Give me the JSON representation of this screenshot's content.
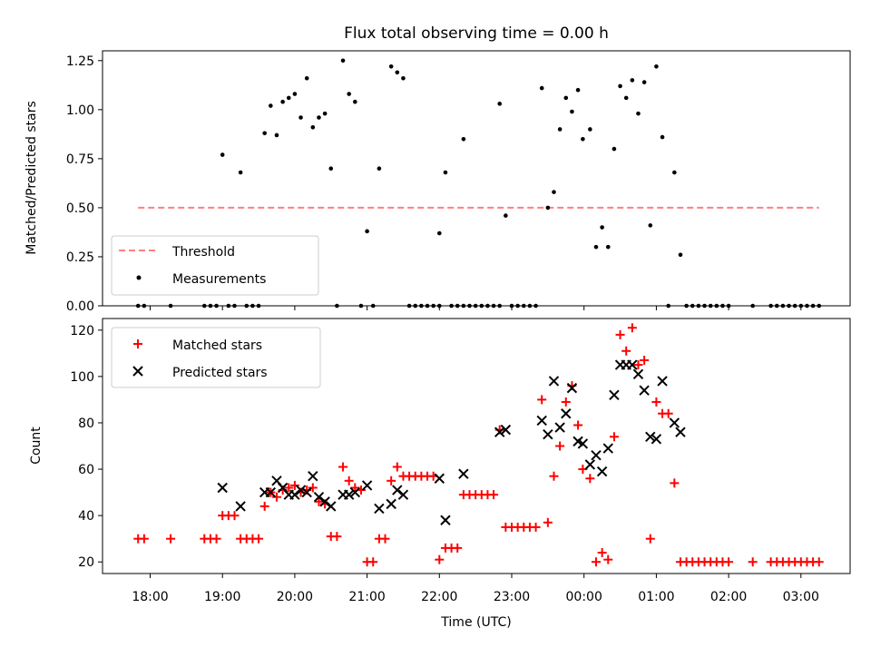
{
  "chart_data": [
    {
      "type": "scatter",
      "title": "Flux total observing time = 0.00 h",
      "xlabel": "",
      "ylabel": "Matched/Predicted stars",
      "ylim": [
        0,
        1.3
      ],
      "yticks": [
        "0.00",
        "0.25",
        "0.50",
        "0.75",
        "1.00",
        "1.25"
      ],
      "legend_position": "lower-left",
      "threshold": {
        "name": "Threshold",
        "value": 0.5,
        "x_range": [
          "17:50",
          "03:15"
        ],
        "color": "#ff7f7f",
        "style": "dashed"
      },
      "series": [
        {
          "name": "Measurements",
          "color": "#000000",
          "marker": "dot",
          "points": [
            [
              "17:50",
              0
            ],
            [
              "17:55",
              0
            ],
            [
              "18:17",
              0
            ],
            [
              "18:45",
              0
            ],
            [
              "18:50",
              0
            ],
            [
              "18:55",
              0
            ],
            [
              "19:05",
              0
            ],
            [
              "19:10",
              0
            ],
            [
              "19:20",
              0
            ],
            [
              "19:25",
              0
            ],
            [
              "19:30",
              0
            ],
            [
              "20:35",
              0
            ],
            [
              "20:55",
              0
            ],
            [
              "21:05",
              0
            ],
            [
              "21:35",
              0
            ],
            [
              "21:40",
              0
            ],
            [
              "21:45",
              0
            ],
            [
              "21:50",
              0
            ],
            [
              "21:55",
              0
            ],
            [
              "22:00",
              0
            ],
            [
              "22:10",
              0
            ],
            [
              "22:15",
              0
            ],
            [
              "22:20",
              0
            ],
            [
              "22:25",
              0
            ],
            [
              "22:30",
              0
            ],
            [
              "22:35",
              0
            ],
            [
              "22:40",
              0
            ],
            [
              "22:45",
              0
            ],
            [
              "22:50",
              0
            ],
            [
              "23:00",
              0
            ],
            [
              "23:05",
              0
            ],
            [
              "23:10",
              0
            ],
            [
              "23:15",
              0
            ],
            [
              "23:20",
              0
            ],
            [
              "01:10",
              0
            ],
            [
              "01:25",
              0
            ],
            [
              "01:30",
              0
            ],
            [
              "01:35",
              0
            ],
            [
              "01:40",
              0
            ],
            [
              "01:45",
              0
            ],
            [
              "01:50",
              0
            ],
            [
              "01:55",
              0
            ],
            [
              "02:00",
              0
            ],
            [
              "02:20",
              0
            ],
            [
              "02:35",
              0
            ],
            [
              "02:40",
              0
            ],
            [
              "02:45",
              0
            ],
            [
              "02:50",
              0
            ],
            [
              "02:55",
              0
            ],
            [
              "03:00",
              0
            ],
            [
              "03:05",
              0
            ],
            [
              "03:10",
              0
            ],
            [
              "03:15",
              0
            ],
            [
              "19:00",
              0.77
            ],
            [
              "19:15",
              0.68
            ],
            [
              "19:35",
              0.88
            ],
            [
              "19:40",
              1.02
            ],
            [
              "19:45",
              0.87
            ],
            [
              "19:50",
              1.04
            ],
            [
              "19:55",
              1.06
            ],
            [
              "20:00",
              1.08
            ],
            [
              "20:05",
              0.96
            ],
            [
              "20:10",
              1.16
            ],
            [
              "20:15",
              0.91
            ],
            [
              "20:20",
              0.96
            ],
            [
              "20:25",
              0.98
            ],
            [
              "20:30",
              0.7
            ],
            [
              "20:40",
              1.25
            ],
            [
              "20:45",
              1.08
            ],
            [
              "20:50",
              1.04
            ],
            [
              "21:00",
              0.38
            ],
            [
              "21:10",
              0.7
            ],
            [
              "21:20",
              1.22
            ],
            [
              "21:25",
              1.19
            ],
            [
              "21:30",
              1.16
            ],
            [
              "22:00",
              0.37
            ],
            [
              "22:05",
              0.68
            ],
            [
              "22:20",
              0.85
            ],
            [
              "22:50",
              1.03
            ],
            [
              "22:55",
              0.46
            ],
            [
              "23:25",
              1.11
            ],
            [
              "23:30",
              0.5
            ],
            [
              "23:35",
              0.58
            ],
            [
              "23:40",
              0.9
            ],
            [
              "23:45",
              1.06
            ],
            [
              "23:50",
              0.99
            ],
            [
              "23:55",
              1.1
            ],
            [
              "23:59",
              0.85
            ],
            [
              "00:05",
              0.9
            ],
            [
              "00:10",
              0.3
            ],
            [
              "00:15",
              0.4
            ],
            [
              "00:20",
              0.3
            ],
            [
              "00:25",
              0.8
            ],
            [
              "00:30",
              1.12
            ],
            [
              "00:35",
              1.06
            ],
            [
              "00:40",
              1.15
            ],
            [
              "00:45",
              0.98
            ],
            [
              "00:50",
              1.14
            ],
            [
              "00:55",
              0.41
            ],
            [
              "01:00",
              1.22
            ],
            [
              "01:05",
              0.86
            ],
            [
              "01:15",
              0.68
            ],
            [
              "01:20",
              0.26
            ]
          ]
        }
      ]
    },
    {
      "type": "scatter",
      "title": "",
      "xlabel": "Time (UTC)",
      "ylabel": "Count",
      "ylim": [
        15,
        125
      ],
      "yticks": [
        "20",
        "40",
        "60",
        "80",
        "100",
        "120"
      ],
      "xticks": [
        "18:00",
        "19:00",
        "20:00",
        "21:00",
        "22:00",
        "23:00",
        "00:00",
        "01:00",
        "02:00",
        "03:00"
      ],
      "legend_position": "top-left",
      "series": [
        {
          "name": "Matched stars",
          "color": "#ff0000",
          "marker": "plus",
          "points": [
            [
              "17:50",
              30
            ],
            [
              "17:55",
              30
            ],
            [
              "18:17",
              30
            ],
            [
              "18:45",
              30
            ],
            [
              "18:50",
              30
            ],
            [
              "18:55",
              30
            ],
            [
              "19:00",
              40
            ],
            [
              "19:05",
              40
            ],
            [
              "19:10",
              40
            ],
            [
              "19:15",
              30
            ],
            [
              "19:20",
              30
            ],
            [
              "19:25",
              30
            ],
            [
              "19:30",
              30
            ],
            [
              "19:35",
              44
            ],
            [
              "19:40",
              50
            ],
            [
              "19:45",
              48
            ],
            [
              "19:50",
              51
            ],
            [
              "19:55",
              52
            ],
            [
              "20:00",
              53
            ],
            [
              "20:05",
              50
            ],
            [
              "20:10",
              51
            ],
            [
              "20:15",
              52
            ],
            [
              "20:20",
              46
            ],
            [
              "20:25",
              45
            ],
            [
              "20:30",
              31
            ],
            [
              "20:35",
              31
            ],
            [
              "20:40",
              61
            ],
            [
              "20:45",
              55
            ],
            [
              "20:50",
              52
            ],
            [
              "20:55",
              51
            ],
            [
              "21:00",
              20
            ],
            [
              "21:05",
              20
            ],
            [
              "21:10",
              30
            ],
            [
              "21:15",
              30
            ],
            [
              "21:20",
              55
            ],
            [
              "21:25",
              61
            ],
            [
              "21:30",
              57
            ],
            [
              "21:35",
              57
            ],
            [
              "21:40",
              57
            ],
            [
              "21:45",
              57
            ],
            [
              "21:50",
              57
            ],
            [
              "21:55",
              57
            ],
            [
              "22:00",
              21
            ],
            [
              "22:05",
              26
            ],
            [
              "22:10",
              26
            ],
            [
              "22:15",
              26
            ],
            [
              "22:20",
              49
            ],
            [
              "22:25",
              49
            ],
            [
              "22:30",
              49
            ],
            [
              "22:35",
              49
            ],
            [
              "22:40",
              49
            ],
            [
              "22:45",
              49
            ],
            [
              "22:50",
              77
            ],
            [
              "22:55",
              35
            ],
            [
              "23:00",
              35
            ],
            [
              "23:05",
              35
            ],
            [
              "23:10",
              35
            ],
            [
              "23:15",
              35
            ],
            [
              "23:20",
              35
            ],
            [
              "23:25",
              90
            ],
            [
              "23:30",
              37
            ],
            [
              "23:35",
              57
            ],
            [
              "23:40",
              70
            ],
            [
              "23:45",
              89
            ],
            [
              "23:50",
              96
            ],
            [
              "23:55",
              79
            ],
            [
              "23:59",
              60
            ],
            [
              "00:05",
              56
            ],
            [
              "00:10",
              20
            ],
            [
              "00:15",
              24
            ],
            [
              "00:20",
              21
            ],
            [
              "00:25",
              74
            ],
            [
              "00:30",
              118
            ],
            [
              "00:35",
              111
            ],
            [
              "00:40",
              121
            ],
            [
              "00:45",
              105
            ],
            [
              "00:50",
              107
            ],
            [
              "00:55",
              30
            ],
            [
              "01:00",
              89
            ],
            [
              "01:05",
              84
            ],
            [
              "01:10",
              84
            ],
            [
              "01:15",
              54
            ],
            [
              "01:20",
              20
            ],
            [
              "01:25",
              20
            ],
            [
              "01:30",
              20
            ],
            [
              "01:35",
              20
            ],
            [
              "01:40",
              20
            ],
            [
              "01:45",
              20
            ],
            [
              "01:50",
              20
            ],
            [
              "01:55",
              20
            ],
            [
              "02:00",
              20
            ],
            [
              "02:20",
              20
            ],
            [
              "02:35",
              20
            ],
            [
              "02:40",
              20
            ],
            [
              "02:45",
              20
            ],
            [
              "02:50",
              20
            ],
            [
              "02:55",
              20
            ],
            [
              "03:00",
              20
            ],
            [
              "03:05",
              20
            ],
            [
              "03:10",
              20
            ],
            [
              "03:15",
              20
            ]
          ]
        },
        {
          "name": "Predicted stars",
          "color": "#000000",
          "marker": "x",
          "points": [
            [
              "19:00",
              52
            ],
            [
              "19:15",
              44
            ],
            [
              "19:35",
              50
            ],
            [
              "19:40",
              50
            ],
            [
              "19:45",
              55
            ],
            [
              "19:50",
              52
            ],
            [
              "19:55",
              49
            ],
            [
              "20:00",
              49
            ],
            [
              "20:05",
              51
            ],
            [
              "20:10",
              50
            ],
            [
              "20:15",
              57
            ],
            [
              "20:20",
              48
            ],
            [
              "20:25",
              46
            ],
            [
              "20:30",
              44
            ],
            [
              "20:40",
              49
            ],
            [
              "20:45",
              49
            ],
            [
              "20:50",
              50
            ],
            [
              "21:00",
              53
            ],
            [
              "21:10",
              43
            ],
            [
              "21:20",
              45
            ],
            [
              "21:25",
              51
            ],
            [
              "21:30",
              49
            ],
            [
              "22:00",
              56
            ],
            [
              "22:05",
              38
            ],
            [
              "22:20",
              58
            ],
            [
              "22:50",
              76
            ],
            [
              "22:55",
              77
            ],
            [
              "23:25",
              81
            ],
            [
              "23:30",
              75
            ],
            [
              "23:35",
              98
            ],
            [
              "23:40",
              78
            ],
            [
              "23:45",
              84
            ],
            [
              "23:50",
              95
            ],
            [
              "23:55",
              72
            ],
            [
              "23:59",
              71
            ],
            [
              "00:05",
              62
            ],
            [
              "00:10",
              66
            ],
            [
              "00:15",
              59
            ],
            [
              "00:20",
              69
            ],
            [
              "00:25",
              92
            ],
            [
              "00:30",
              105
            ],
            [
              "00:35",
              105
            ],
            [
              "00:40",
              105
            ],
            [
              "00:45",
              101
            ],
            [
              "00:50",
              94
            ],
            [
              "00:55",
              74
            ],
            [
              "01:00",
              73
            ],
            [
              "01:05",
              98
            ],
            [
              "01:15",
              80
            ],
            [
              "01:20",
              76
            ]
          ]
        }
      ]
    }
  ]
}
